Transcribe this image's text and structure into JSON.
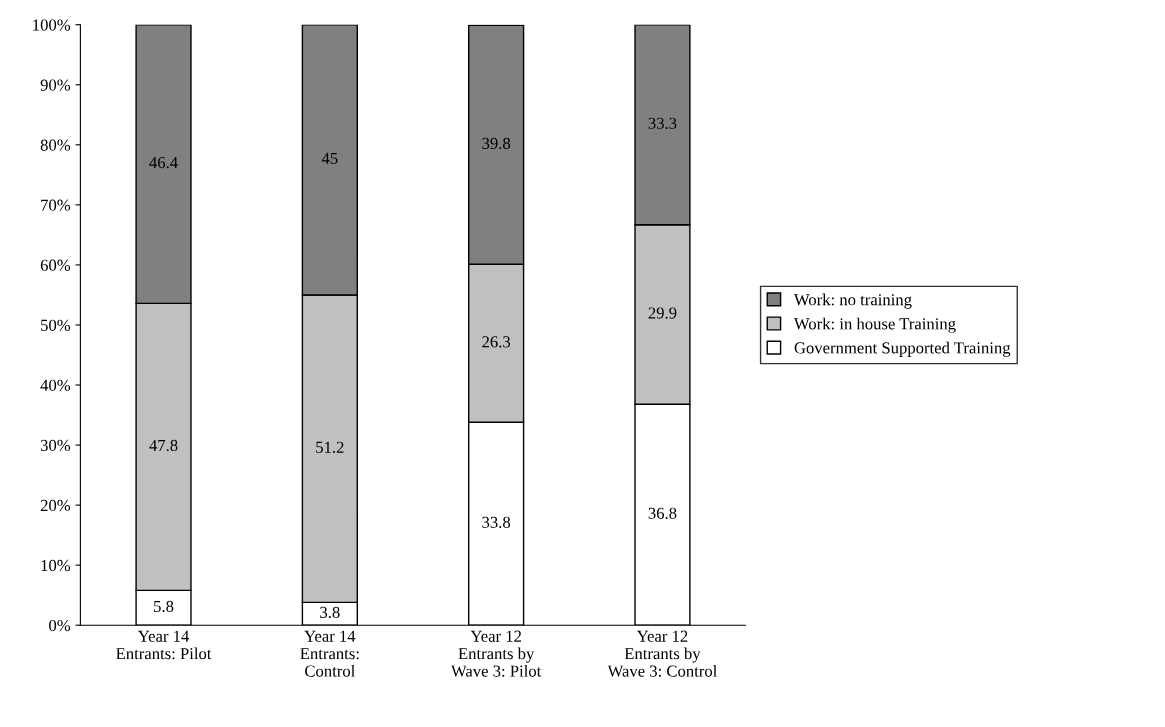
{
  "chart_data": {
    "type": "bar",
    "stacked": true,
    "categories": [
      "Year 14\nEntrants: Pilot",
      "Year 14\nEntrants:\nControl",
      "Year 12\nEntrants by\nWave 3: Pilot",
      "Year 12\nEntrants by\nWave 3: Control"
    ],
    "series": [
      {
        "name": "Government Supported Training",
        "color": "#ffffff",
        "values": [
          5.8,
          3.8,
          33.8,
          36.8
        ]
      },
      {
        "name": "Work: in house Training",
        "color": "#c0c0c0",
        "values": [
          47.8,
          51.2,
          26.3,
          29.9
        ]
      },
      {
        "name": "Work: no training",
        "color": "#808080",
        "values": [
          46.4,
          45,
          39.8,
          33.3
        ]
      }
    ],
    "ylim": [
      0,
      100
    ],
    "yticks": [
      {
        "value": 0,
        "label": "0%"
      },
      {
        "value": 10,
        "label": "10%"
      },
      {
        "value": 20,
        "label": "20%"
      },
      {
        "value": 30,
        "label": "30%"
      },
      {
        "value": 40,
        "label": "40%"
      },
      {
        "value": 50,
        "label": "50%"
      },
      {
        "value": 60,
        "label": "60%"
      },
      {
        "value": 70,
        "label": "70%"
      },
      {
        "value": 80,
        "label": "80%"
      },
      {
        "value": 90,
        "label": "90%"
      },
      {
        "value": 100,
        "label": "100%"
      }
    ],
    "data_labels": true,
    "grid": false,
    "legend": "right"
  }
}
